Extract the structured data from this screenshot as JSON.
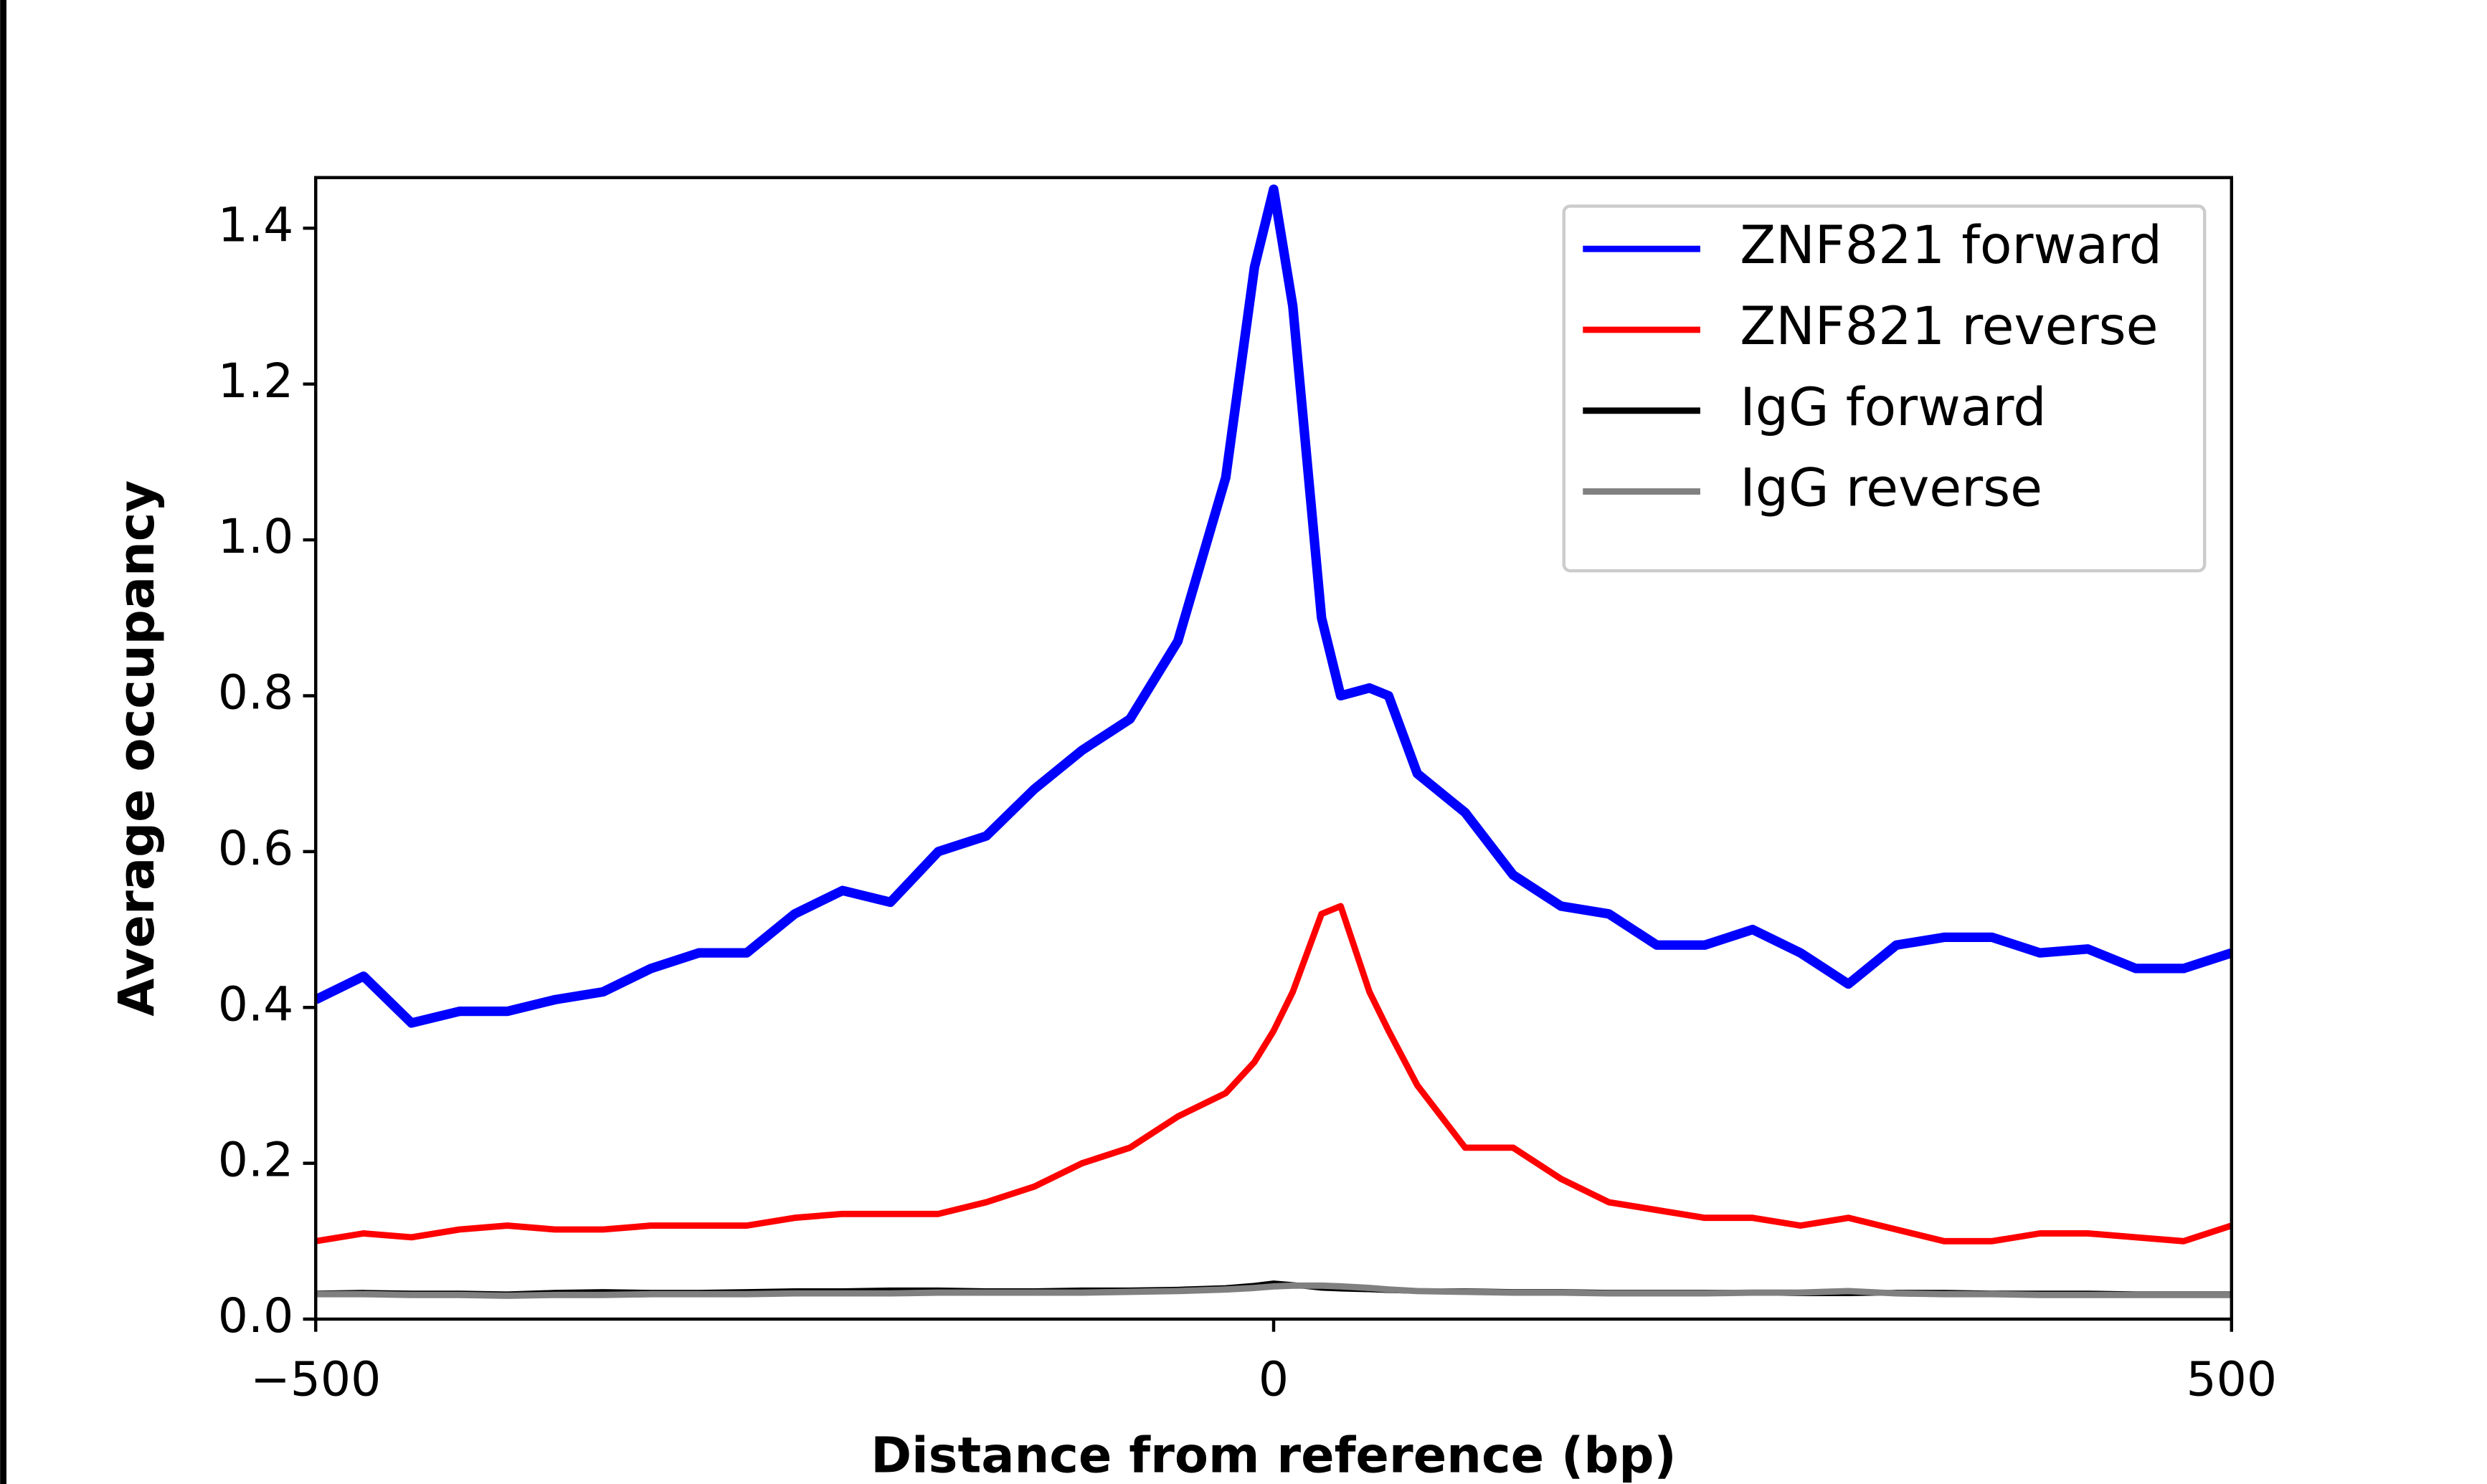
{
  "chart_data": {
    "type": "line",
    "xlabel": "Distance from reference (bp)",
    "ylabel": "Average occupancy",
    "x": [
      -500,
      -475,
      -450,
      -425,
      -400,
      -375,
      -350,
      -325,
      -300,
      -275,
      -250,
      -225,
      -200,
      -175,
      -150,
      -125,
      -100,
      -75,
      -50,
      -25,
      -10,
      0,
      10,
      25,
      35,
      50,
      60,
      75,
      100,
      125,
      150,
      175,
      200,
      225,
      250,
      275,
      300,
      325,
      350,
      375,
      400,
      425,
      450,
      475,
      500
    ],
    "series": [
      {
        "name": "ZNF821 forward",
        "color": "#0000ff",
        "values": [
          0.41,
          0.44,
          0.38,
          0.395,
          0.395,
          0.41,
          0.42,
          0.45,
          0.47,
          0.47,
          0.52,
          0.55,
          0.535,
          0.6,
          0.62,
          0.68,
          0.73,
          0.77,
          0.87,
          1.08,
          1.35,
          1.45,
          1.3,
          0.9,
          0.8,
          0.81,
          0.8,
          0.7,
          0.65,
          0.57,
          0.53,
          0.52,
          0.48,
          0.48,
          0.5,
          0.47,
          0.43,
          0.48,
          0.49,
          0.49,
          0.47,
          0.475,
          0.45,
          0.45,
          0.47
        ]
      },
      {
        "name": "ZNF821 reverse",
        "color": "#ff0000",
        "values": [
          0.1,
          0.11,
          0.105,
          0.115,
          0.12,
          0.115,
          0.115,
          0.12,
          0.12,
          0.12,
          0.13,
          0.135,
          0.135,
          0.135,
          0.15,
          0.17,
          0.2,
          0.22,
          0.26,
          0.29,
          0.33,
          0.37,
          0.42,
          0.52,
          0.53,
          0.42,
          0.37,
          0.3,
          0.22,
          0.22,
          0.18,
          0.15,
          0.14,
          0.13,
          0.13,
          0.12,
          0.13,
          0.115,
          0.1,
          0.1,
          0.11,
          0.11,
          0.105,
          0.1,
          0.12
        ]
      },
      {
        "name": "IgG forward",
        "color": "#000000",
        "values": [
          0.033,
          0.034,
          0.033,
          0.033,
          0.032,
          0.034,
          0.035,
          0.034,
          0.034,
          0.035,
          0.036,
          0.036,
          0.037,
          0.037,
          0.036,
          0.036,
          0.037,
          0.037,
          0.038,
          0.04,
          0.043,
          0.046,
          0.044,
          0.04,
          0.039,
          0.038,
          0.037,
          0.036,
          0.036,
          0.035,
          0.035,
          0.034,
          0.034,
          0.034,
          0.034,
          0.033,
          0.033,
          0.034,
          0.034,
          0.033,
          0.033,
          0.033,
          0.032,
          0.032,
          0.032
        ]
      },
      {
        "name": "IgG reverse",
        "color": "#808080",
        "values": [
          0.032,
          0.032,
          0.031,
          0.031,
          0.03,
          0.031,
          0.031,
          0.032,
          0.032,
          0.032,
          0.033,
          0.033,
          0.033,
          0.034,
          0.034,
          0.034,
          0.034,
          0.035,
          0.036,
          0.038,
          0.04,
          0.042,
          0.043,
          0.043,
          0.042,
          0.04,
          0.038,
          0.036,
          0.035,
          0.034,
          0.034,
          0.033,
          0.033,
          0.033,
          0.034,
          0.034,
          0.036,
          0.033,
          0.032,
          0.032,
          0.031,
          0.031,
          0.031,
          0.031,
          0.031
        ]
      }
    ],
    "xlim": [
      -500,
      500
    ],
    "xticks": [
      {
        "value": -500,
        "label": "−500"
      },
      0,
      500
    ],
    "ylim": [
      0,
      1.465
    ],
    "yticks": [
      {
        "value": 0,
        "label": "0.0"
      },
      0.2,
      0.4,
      0.6,
      0.8,
      {
        "value": 1,
        "label": "1.0"
      },
      1.2,
      1.4
    ],
    "legend": "upper right"
  }
}
